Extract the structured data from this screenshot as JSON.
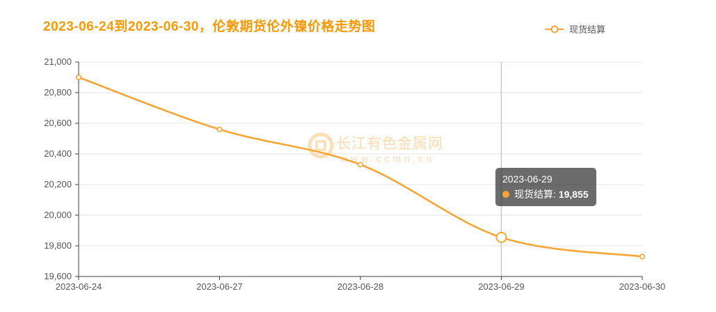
{
  "title": "2023-06-24到2023-06-30，伦敦期货伦外镍价格走势图",
  "legend": {
    "label": "现货结算"
  },
  "tooltip": {
    "date": "2023-06-29",
    "series": "现货结算",
    "value": "19,855"
  },
  "watermark": {
    "name": "长江有色金属网",
    "url": "www.ccmn.cn"
  },
  "colors": {
    "accent": "#f7a634",
    "title": "#ff9800",
    "grid": "#e3e3e3",
    "axis": "#3c3c3c",
    "axis_label": "#555555",
    "crosshair": "#c8c8c8",
    "tooltip_bg": "rgba(50,50,50,0.72)",
    "watermark": "#f5c57b"
  },
  "chart_data": {
    "type": "line",
    "title": "2023-06-24到2023-06-30，伦敦期货伦外镍价格走势图",
    "categories": [
      "2023-06-24",
      "2023-06-27",
      "2023-06-28",
      "2023-06-29",
      "2023-06-30"
    ],
    "series": [
      {
        "name": "现货结算",
        "values": [
          20900,
          20560,
          20330,
          19855,
          19730
        ]
      }
    ],
    "ylim": [
      19600,
      21000
    ],
    "ytick_interval": 200,
    "ytick_labels": [
      "19,600",
      "19,800",
      "20,000",
      "20,200",
      "20,400",
      "20,600",
      "20,800",
      "21,000"
    ],
    "highlight_index": 3,
    "highlight_value_label": "19,855",
    "grid": true,
    "smooth": true,
    "legend_position": "top-right"
  }
}
